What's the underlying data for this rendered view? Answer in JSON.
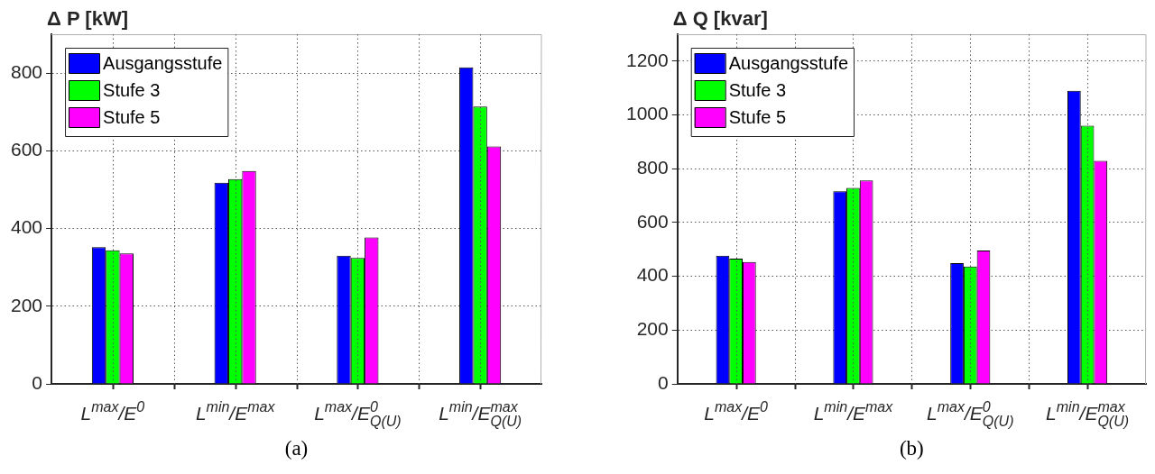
{
  "chart_data": [
    {
      "type": "bar",
      "ylabel": "Δ P [kW]",
      "categories": [
        "L$^{max}$/E$^{0}$",
        "L$^{min}$/E$^{max}$",
        "L$^{max}$/E$^{0}$$_{Q(U)}$",
        "L$^{min}$/E$^{max}$$_{Q(U)}$"
      ],
      "series": [
        {
          "name": "Ausgangsstufe",
          "color": "#0000ff",
          "values": [
            352,
            518,
            330,
            815
          ]
        },
        {
          "name": "Stufe 3",
          "color": "#00ff00",
          "values": [
            344,
            527,
            324,
            714
          ]
        },
        {
          "name": "Stufe 5",
          "color": "#ff00ff",
          "values": [
            336,
            548,
            377,
            611
          ]
        }
      ],
      "ylim": [
        0,
        900
      ],
      "yticks": [
        0,
        200,
        400,
        600,
        800
      ],
      "grid": true,
      "legend": "top left",
      "annotations": [
        "(a)"
      ]
    },
    {
      "type": "bar",
      "ylabel": "Δ Q [kvar]",
      "categories": [
        "L$^{max}$/E$^{0}$",
        "L$^{min}$/E$^{max}$",
        "L$^{max}$/E$^{0}$$_{Q(U)}$",
        "L$^{min}$/E$^{max}$$_{Q(U)}$"
      ],
      "series": [
        {
          "name": "Ausgangsstufe",
          "color": "#0000ff",
          "values": [
            477,
            716,
            449,
            1090
          ]
        },
        {
          "name": "Stufe 3",
          "color": "#00ff00",
          "values": [
            466,
            729,
            436,
            960
          ]
        },
        {
          "name": "Stufe 5",
          "color": "#ff00ff",
          "values": [
            453,
            756,
            496,
            829
          ]
        }
      ],
      "ylim": [
        0,
        1300
      ],
      "yticks": [
        0,
        200,
        400,
        600,
        800,
        1000,
        1200
      ],
      "grid": true,
      "legend": "top left",
      "annotations": [
        "(b)"
      ]
    }
  ]
}
